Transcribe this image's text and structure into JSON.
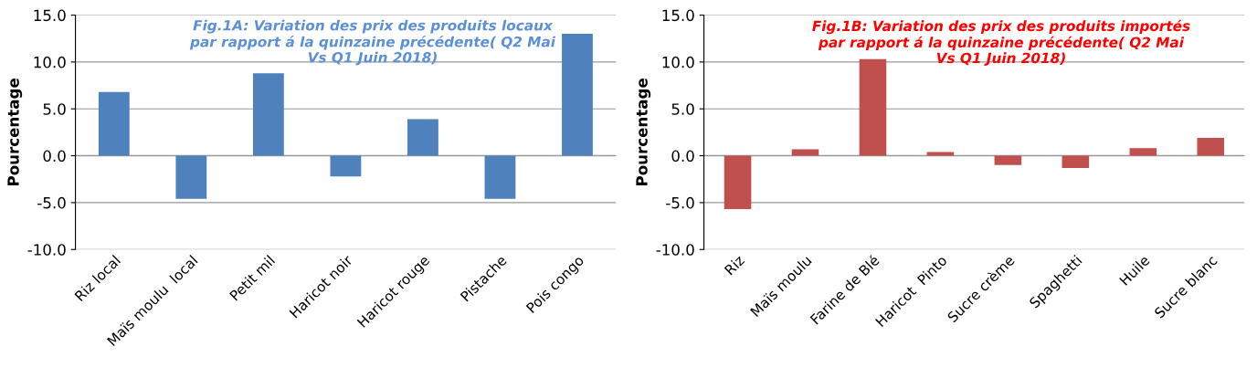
{
  "chart_data": [
    {
      "type": "bar",
      "title": "Fig.1A: Variation des prix des produits locaux\npar rapport á la quinzaine précédente( Q2 Mai\nVs Q1 Juin 2018)",
      "ylabel": "Pourcentage",
      "categories": [
        "Riz local",
        "Maïs moulu  local",
        "Petit mil",
        "Haricot noir",
        "Haricot rouge",
        "Pistache",
        "Pois congo"
      ],
      "values": [
        6.8,
        -4.6,
        8.8,
        -2.2,
        3.9,
        -4.6,
        13.0
      ],
      "color": "#4f81bd",
      "ylim": [
        -10,
        15
      ],
      "yticks": [
        {
          "value": -10,
          "label": "-10.0"
        },
        {
          "value": -5,
          "label": "-5.0"
        },
        {
          "value": 0,
          "label": "0.0"
        },
        {
          "value": 5,
          "label": "5.0"
        },
        {
          "value": 10,
          "label": "10.0"
        },
        {
          "value": 15,
          "label": "15.0"
        }
      ],
      "grid": "y"
    },
    {
      "type": "bar",
      "title": "Fig.1B: Variation des prix des produits importés\npar rapport á la quinzaine précédente( Q2 Mai\nVs Q1 Juin 2018)",
      "ylabel": "Pourcentage",
      "categories": [
        "Riz",
        "Maïs moulu",
        "Farine de Blé",
        "Haricot  Pinto",
        "Sucre crème",
        "Spaghetti",
        "Huile",
        "Sucre blanc"
      ],
      "values": [
        -5.7,
        0.7,
        10.3,
        0.4,
        -1.0,
        -1.3,
        0.8,
        1.9
      ],
      "color": "#c0504d",
      "ylim": [
        -10,
        15
      ],
      "yticks": [
        {
          "value": -10,
          "label": "-10.0"
        },
        {
          "value": -5,
          "label": "-5.0"
        },
        {
          "value": 0,
          "label": "0.0"
        },
        {
          "value": 5,
          "label": "5.0"
        },
        {
          "value": 10,
          "label": "10.0"
        },
        {
          "value": 15,
          "label": "15.0"
        }
      ],
      "grid": "y"
    }
  ]
}
